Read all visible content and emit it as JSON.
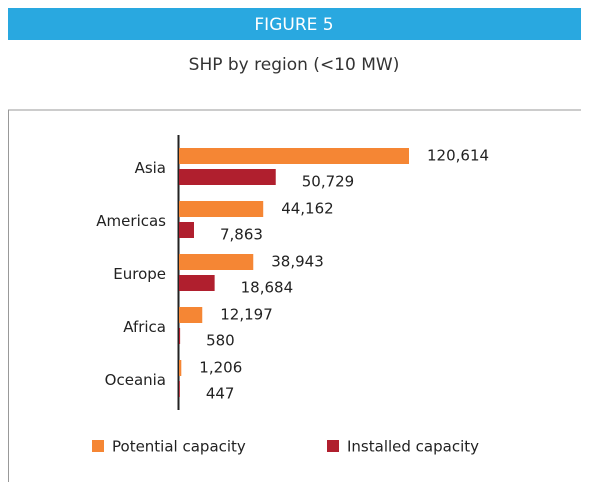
{
  "chart_data": {
    "type": "hbar",
    "header": "FIGURE 5",
    "title": "SHP by region (<10 MW)",
    "categories": [
      "Asia",
      "Americas",
      "Europe",
      "Africa",
      "Oceania"
    ],
    "series": [
      {
        "name": "Potential capacity",
        "color": "#f58634",
        "values": [
          120614,
          44162,
          38943,
          12197,
          1206
        ],
        "value_labels": [
          "120,614",
          "44,162",
          "38,943",
          "12,197",
          "1,206"
        ]
      },
      {
        "name": "Installed capacity",
        "color": "#b01f2e",
        "values": [
          50729,
          7863,
          18684,
          580,
          447
        ],
        "value_labels": [
          "50,729",
          "7,863",
          "18,684",
          "580",
          "447"
        ]
      }
    ]
  }
}
